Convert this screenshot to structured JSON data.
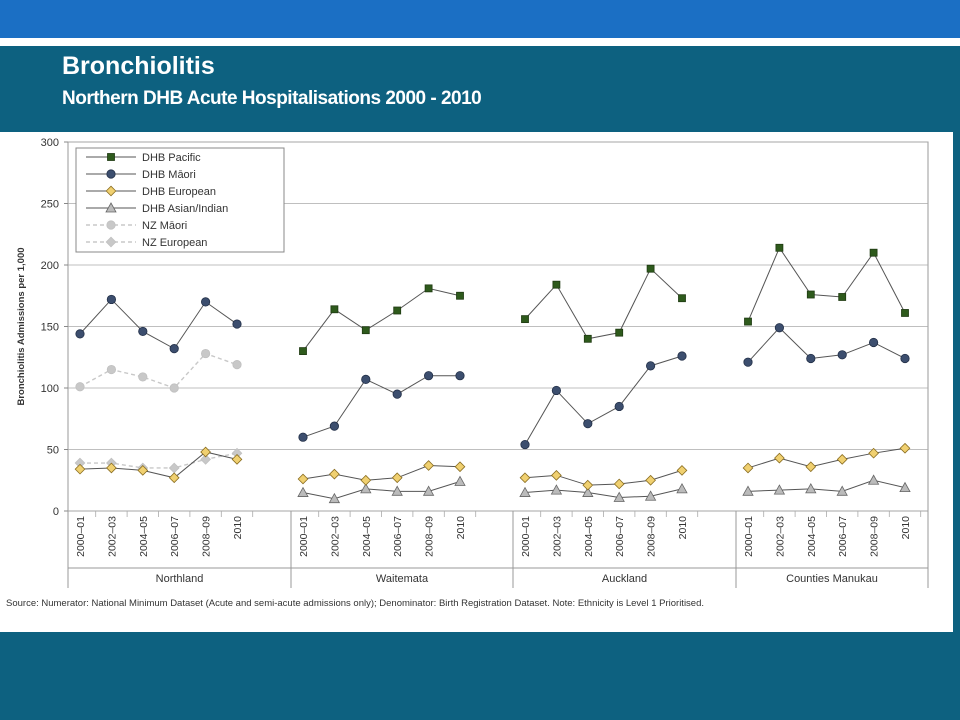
{
  "slide": {
    "title": "Bronchiolitis",
    "subtitle": "Northern DHB Acute Hospitalisations 2000 - 2010"
  },
  "colors": {
    "header_bar": "#1b6fc4",
    "background": "#0d6180",
    "pacific": "#2e5a1c",
    "maori": "#3c4e6e",
    "european": "#f0d070",
    "asian": "#bbbbbb",
    "nz_series": "#c8c8c8"
  },
  "chart_data": {
    "type": "line",
    "ylabel": "Bronchiolitis Admissions per 1,000",
    "ylim": [
      0,
      300
    ],
    "yticks": [
      0,
      50,
      100,
      150,
      200,
      250,
      300
    ],
    "grid": true,
    "legend_position": "top-left",
    "periods": [
      "2000–01",
      "2002–03",
      "2004–05",
      "2006–07",
      "2008–09",
      "2010"
    ],
    "groups": [
      {
        "name": "Northland",
        "series": {
          "DHB Pacific": null,
          "DHB Māori": [
            144,
            172,
            146,
            132,
            170,
            152
          ],
          "DHB European": [
            34,
            35,
            33,
            27,
            48,
            42
          ],
          "DHB Asian/Indian": null,
          "NZ Māori": [
            101,
            115,
            109,
            100,
            128,
            119
          ],
          "NZ European": [
            39,
            39,
            35,
            35,
            42,
            47
          ]
        }
      },
      {
        "name": "Waitemata",
        "series": {
          "DHB Pacific": [
            130,
            164,
            147,
            163,
            181,
            175
          ],
          "DHB Māori": [
            60,
            69,
            107,
            95,
            110,
            110
          ],
          "DHB European": [
            26,
            30,
            25,
            27,
            37,
            36
          ],
          "DHB Asian/Indian": [
            15,
            10,
            18,
            16,
            16,
            24
          ],
          "NZ Māori": null,
          "NZ European": null
        }
      },
      {
        "name": "Auckland",
        "series": {
          "DHB Pacific": [
            156,
            184,
            140,
            145,
            197,
            173
          ],
          "DHB Māori": [
            54,
            98,
            71,
            85,
            118,
            126
          ],
          "DHB European": [
            27,
            29,
            21,
            22,
            25,
            33
          ],
          "DHB Asian/Indian": [
            15,
            17,
            15,
            11,
            12,
            18
          ],
          "NZ Māori": null,
          "NZ European": null
        }
      },
      {
        "name": "Counties Manukau",
        "series": {
          "DHB Pacific": [
            154,
            214,
            176,
            174,
            210,
            161
          ],
          "DHB Māori": [
            121,
            149,
            124,
            127,
            137,
            124
          ],
          "DHB European": [
            35,
            43,
            36,
            42,
            47,
            51
          ],
          "DHB Asian/Indian": [
            16,
            17,
            18,
            16,
            25,
            19
          ],
          "NZ Māori": null,
          "NZ European": null
        }
      }
    ],
    "legend": [
      {
        "name": "DHB Pacific",
        "marker": "square",
        "color": "#2e5a1c",
        "line": "solid"
      },
      {
        "name": "DHB Māori",
        "marker": "circle",
        "color": "#3c4e6e",
        "line": "solid"
      },
      {
        "name": "DHB European",
        "marker": "diamond",
        "color": "#f0d070",
        "line": "solid"
      },
      {
        "name": "DHB Asian/Indian",
        "marker": "triangle",
        "color": "#bbbbbb",
        "line": "solid"
      },
      {
        "name": "NZ Māori",
        "marker": "circle",
        "color": "#c8c8c8",
        "line": "dashed"
      },
      {
        "name": "NZ European",
        "marker": "diamond",
        "color": "#c8c8c8",
        "line": "dashed"
      }
    ]
  },
  "source_note": "Source: Numerator: National Minimum Dataset (Acute and semi-acute admissions only); Denominator: Birth Registration Dataset. Note: Ethnicity is Level 1 Prioritised."
}
